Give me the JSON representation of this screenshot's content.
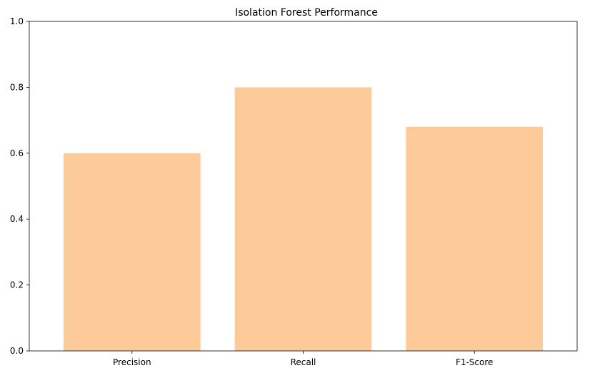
{
  "chart_data": {
    "type": "bar",
    "title": "Isolation Forest Performance",
    "xlabel": "",
    "ylabel": "",
    "categories": [
      "Precision",
      "Recall",
      "F1-Score"
    ],
    "values": [
      0.6,
      0.8,
      0.68
    ],
    "ylim": [
      0,
      1.0
    ],
    "yticks": [
      "0.0",
      "0.2",
      "0.4",
      "0.6",
      "0.8",
      "1.0"
    ],
    "bar_color": "#fdca9a",
    "grid": false,
    "legend": "none"
  }
}
